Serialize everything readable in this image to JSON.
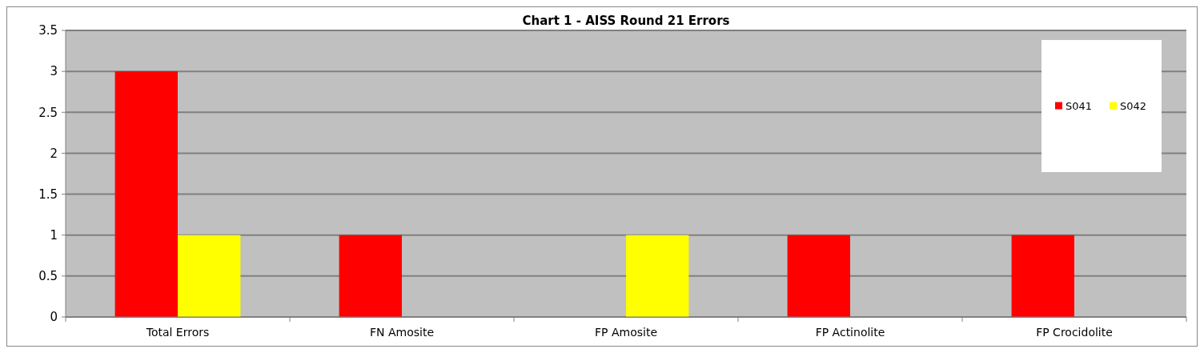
{
  "chart_data": {
    "type": "bar",
    "title": "Chart 1 - AISS Round 21 Errors",
    "categories": [
      "Total Errors",
      "FN Amosite",
      "FP Amosite",
      "FP Actinolite",
      "FP Crocidolite"
    ],
    "series": [
      {
        "name": "S041",
        "color": "#ff0000",
        "values": [
          3,
          1,
          null,
          1,
          1
        ]
      },
      {
        "name": "S042",
        "color": "#ffff00",
        "values": [
          1,
          null,
          1,
          null,
          null
        ]
      }
    ],
    "ylim": [
      0,
      3.5
    ],
    "yticks": [
      0,
      0.5,
      1,
      1.5,
      2,
      2.5,
      3,
      3.5
    ],
    "grid": "y",
    "legend": "top right"
  }
}
